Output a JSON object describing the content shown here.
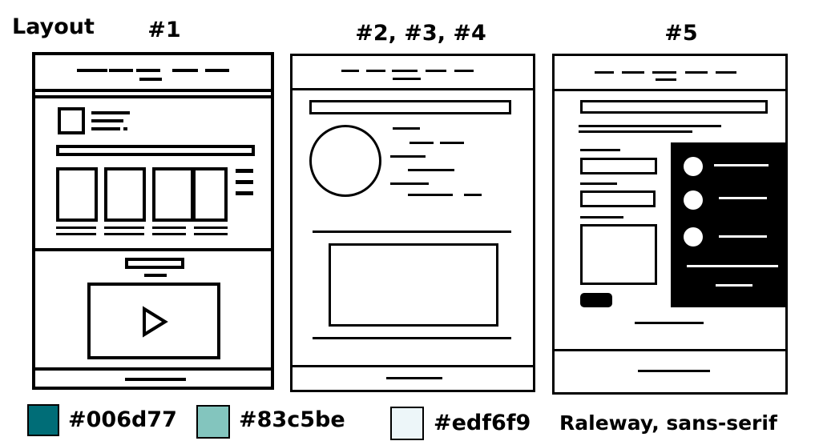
{
  "title": "Layout",
  "layouts": [
    {
      "label": "#1"
    },
    {
      "label": "#2, #3, #4"
    },
    {
      "label": "#5"
    }
  ],
  "palette": [
    {
      "hex": "#006d77",
      "label": "#006d77"
    },
    {
      "hex": "#83c5be",
      "label": "#83c5be"
    },
    {
      "hex": "#edf6f9",
      "label": "#edf6f9"
    }
  ],
  "font_label": "Raleway, sans-serif"
}
